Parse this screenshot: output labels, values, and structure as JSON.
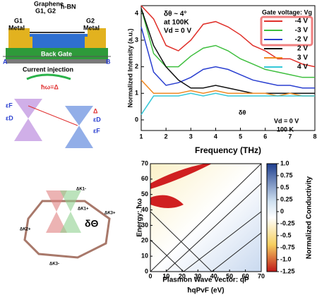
{
  "chart_data": [
    {
      "type": "line",
      "x_label": "Frequency (THz)",
      "y_label": "Normalized Intensity (a.u.)",
      "x": [
        1,
        1.5,
        2,
        2.5,
        3,
        3.5,
        4,
        4.5,
        5,
        5.5,
        6,
        6.5,
        7,
        7.5,
        8
      ],
      "xlim": [
        1,
        8
      ],
      "xticks": [
        1,
        2,
        3,
        4,
        5,
        6,
        7,
        8
      ],
      "ylim": [
        -0.4,
        4.3
      ],
      "yticks": [
        0,
        1,
        2,
        3,
        4
      ],
      "legend_title": "Gate voltage: Vg",
      "legend": "upper right",
      "annotations": [
        "δθ ~ 4°",
        "at 100K",
        "Vd = 0 V",
        "Vd = 0 V",
        "100 K",
        "δθ"
      ],
      "series": [
        {
          "name": "-4 V",
          "color": "#e0302a",
          "values": [
            4.3,
            3.8,
            2.8,
            2.6,
            3.0,
            3.6,
            3.7,
            3.5,
            3.2,
            2.8,
            2.6,
            2.3,
            2.3,
            2.1,
            2.0
          ]
        },
        {
          "name": "-3 V",
          "color": "#3fbf3f",
          "values": [
            4.2,
            2.5,
            2.0,
            2.0,
            2.4,
            2.7,
            2.8,
            2.6,
            2.3,
            2.1,
            1.9,
            1.8,
            1.7,
            1.6,
            1.6
          ]
        },
        {
          "name": "-2 V",
          "color": "#2a3fd0",
          "values": [
            3.5,
            1.8,
            1.3,
            1.4,
            1.6,
            1.9,
            2.0,
            1.9,
            1.7,
            1.5,
            1.4,
            1.3,
            1.3,
            1.2,
            1.2
          ]
        },
        {
          "name": "2 V",
          "color": "#111111",
          "values": [
            4.2,
            2.8,
            2.0,
            1.5,
            1.2,
            1.2,
            1.3,
            1.2,
            1.1,
            1.0,
            1.0,
            1.0,
            1.0,
            1.0,
            1.0
          ]
        },
        {
          "name": "3 V",
          "color": "#f08a24",
          "values": [
            1.5,
            1.0,
            1.0,
            1.0,
            1.1,
            1.0,
            1.1,
            1.0,
            1.0,
            1.0,
            1.0,
            0.9,
            1.0,
            0.9,
            0.9
          ]
        },
        {
          "name": "4 V",
          "color": "#35c8d8",
          "values": [
            0.2,
            0.9,
            0.9,
            0.9,
            1.0,
            0.9,
            1.0,
            0.9,
            0.9,
            0.9,
            0.9,
            0.9,
            0.9,
            0.9,
            0.9
          ]
        }
      ]
    },
    {
      "type": "heatmap",
      "x_label": "Plasmon Wave Vector: qP",
      "x_label2": "ħqPvF (eV)",
      "y_label": "Energy: ħω",
      "colorbar_label": "Normalized Conductivity",
      "xlim": [
        0,
        70
      ],
      "xticks": [
        0,
        10,
        20,
        30,
        40,
        50,
        60,
        70
      ],
      "ylim": [
        0,
        70
      ],
      "yticks": [
        0,
        10,
        20,
        30,
        40,
        50,
        60,
        70
      ],
      "colorbar_lim": [
        -1.25,
        1
      ],
      "colorbar_ticks": [
        {
          "value": 1,
          "label": "1.0"
        },
        0.75,
        0.5,
        0.25,
        0,
        -0.25,
        -0.5,
        -0.75,
        {
          "value": -1,
          "label": "-1.0"
        },
        -1.25
      ]
    }
  ],
  "device": {
    "labels": [
      "Graphene",
      "G1, G2",
      "h-BN",
      "G1",
      "Metal",
      "G2",
      "Metal",
      "A",
      "B",
      "Back Gate",
      "Current injection"
    ]
  },
  "bands": {
    "labels": [
      "ħω=Δ",
      "εF",
      "εD",
      "εD",
      "Δ",
      "εF"
    ]
  },
  "moire": {
    "labels": [
      "δΘ",
      "ΔK1+",
      "ΔK1-",
      "ΔK2+",
      "ΔK3+",
      "ΔK3-"
    ]
  }
}
